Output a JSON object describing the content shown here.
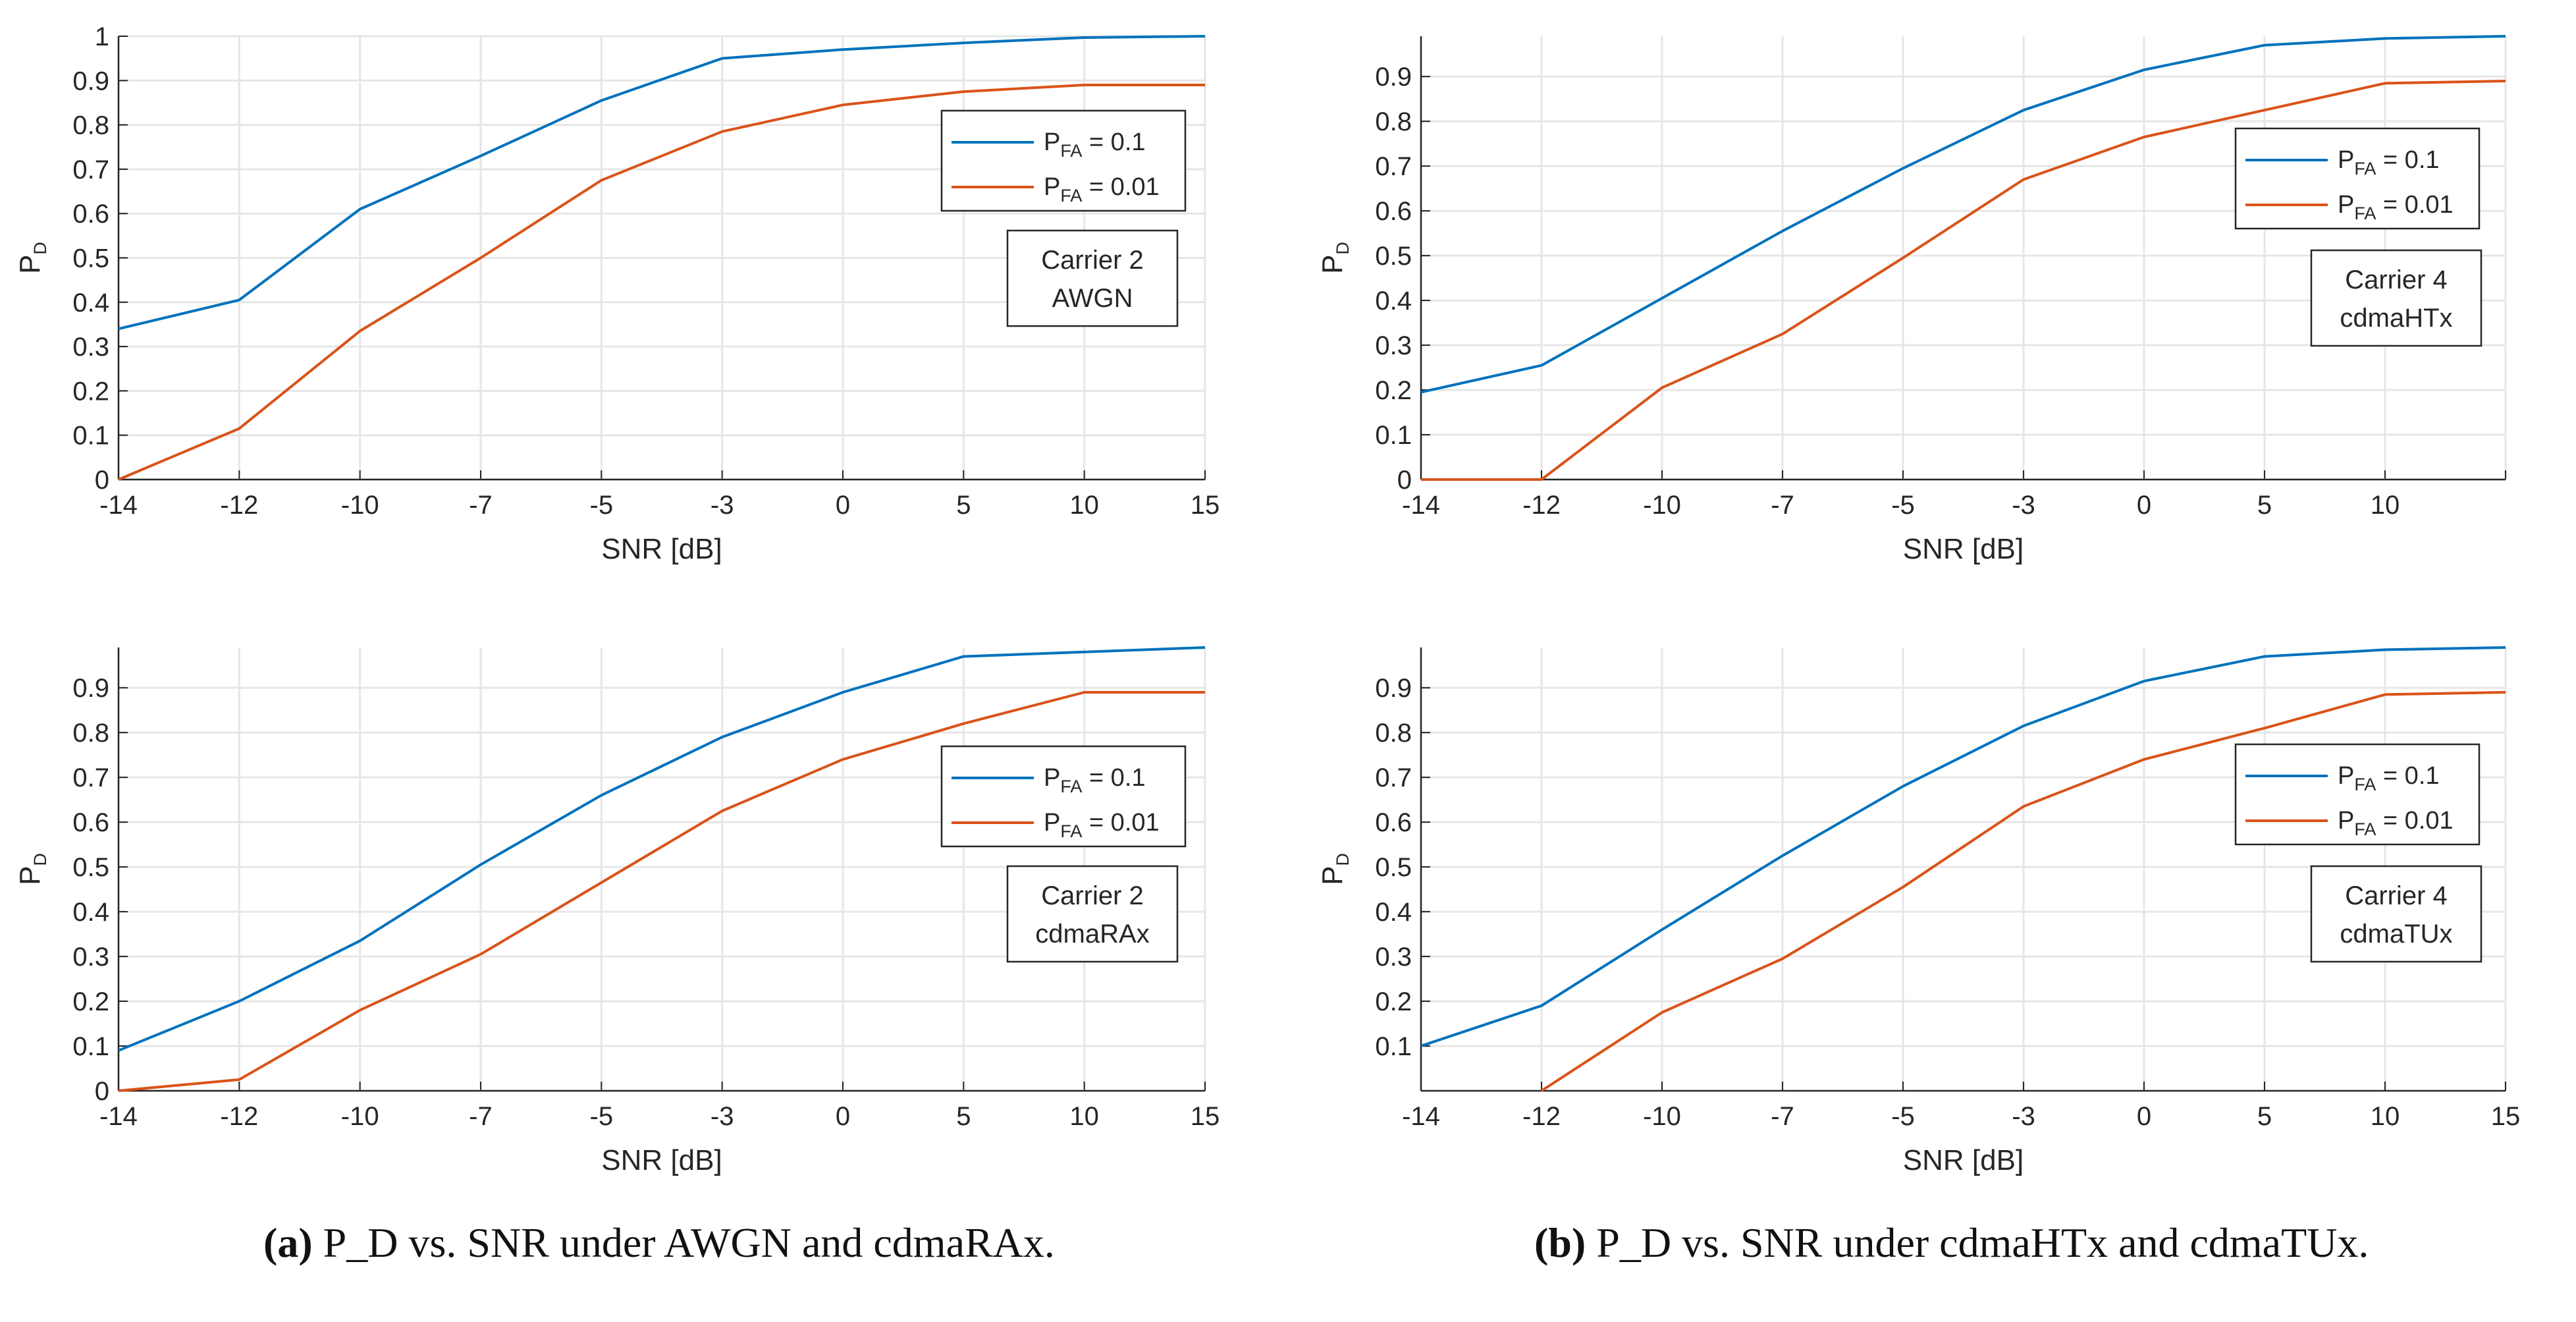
{
  "colors": {
    "series1": "#0072BD",
    "series2": "#D95319",
    "grid": "#e6e6e6",
    "axis": "#262626"
  },
  "captions": [
    {
      "id": "a",
      "label": "(a)",
      "text": "P_D vs. SNR under AWGN and cdmaRAx."
    },
    {
      "id": "b",
      "label": "(b)",
      "text": "P_D vs. SNR under cdmaHTx and cdmaTUx."
    }
  ],
  "chart_data": [
    {
      "type": "line",
      "xlabel": "SNR [dB]",
      "ylabel": "P_D",
      "categories": [
        "-14",
        "-12",
        "-10",
        "-7",
        "-5",
        "-3",
        "0",
        "5",
        "10",
        "15"
      ],
      "ylim": [
        0,
        1
      ],
      "yticks": [
        "0",
        "0.1",
        "0.2",
        "0.3",
        "0.4",
        "0.5",
        "0.6",
        "0.7",
        "0.8",
        "0.9",
        "1"
      ],
      "grid": true,
      "legend_position": "right",
      "annotation": [
        "Carrier 2",
        "AWGN"
      ],
      "series": [
        {
          "name": "P_FA = 0.1",
          "values": [
            0.34,
            0.405,
            0.61,
            0.73,
            0.855,
            0.95,
            0.97,
            0.985,
            0.997,
            1.0
          ]
        },
        {
          "name": "P_FA = 0.01",
          "values": [
            0.0,
            0.115,
            0.335,
            0.5,
            0.675,
            0.785,
            0.845,
            0.875,
            0.89,
            0.89
          ]
        }
      ]
    },
    {
      "type": "line",
      "xlabel": "SNR [dB]",
      "ylabel": "P_D",
      "categories": [
        "-14",
        "-12",
        "-10",
        "-7",
        "-5",
        "-3",
        "0",
        "5",
        "10",
        "15"
      ],
      "ylim": [
        0,
        0.99
      ],
      "yticks": [
        "0",
        "0.1",
        "0.2",
        "0.3",
        "0.4",
        "0.5",
        "0.6",
        "0.7",
        "0.8",
        "0.9"
      ],
      "grid": true,
      "legend_position": "right",
      "annotation": [
        "Carrier 2",
        "cdmaRAx"
      ],
      "series": [
        {
          "name": "P_FA = 0.1",
          "values": [
            0.09,
            0.2,
            0.335,
            0.505,
            0.66,
            0.79,
            0.89,
            0.97,
            0.98,
            0.99
          ]
        },
        {
          "name": "P_FA = 0.01",
          "values": [
            0.0,
            0.025,
            0.18,
            0.305,
            0.465,
            0.625,
            0.74,
            0.82,
            0.89,
            0.89
          ]
        }
      ]
    },
    {
      "type": "line",
      "xlabel": "SNR [dB]",
      "ylabel": "P_D",
      "categories": [
        "-14",
        "-12",
        "-10",
        "-7",
        "-5",
        "-3",
        "0",
        "5",
        "10",
        ""
      ],
      "ylim": [
        0,
        0.99
      ],
      "yticks": [
        "0",
        "0.1",
        "0.2",
        "0.3",
        "0.4",
        "0.5",
        "0.6",
        "0.7",
        "0.8",
        "0.9"
      ],
      "grid": true,
      "legend_position": "right",
      "annotation": [
        "Carrier 4",
        "cdmaHTx"
      ],
      "series": [
        {
          "name": "P_FA = 0.1",
          "values": [
            0.195,
            0.255,
            0.405,
            0.555,
            0.695,
            0.825,
            0.915,
            0.97,
            0.985,
            0.99
          ]
        },
        {
          "name": "P_FA = 0.01",
          "values": [
            0.0,
            0.0,
            0.205,
            0.325,
            0.495,
            0.67,
            0.765,
            0.825,
            0.885,
            0.89
          ]
        }
      ]
    },
    {
      "type": "line",
      "xlabel": "SNR [dB]",
      "ylabel": "P_D",
      "categories": [
        "-14",
        "-12",
        "-10",
        "-7",
        "-5",
        "-3",
        "0",
        "5",
        "10",
        "15"
      ],
      "ylim": [
        0,
        0.99
      ],
      "yticks": [
        "0.1",
        "0.2",
        "0.3",
        "0.4",
        "0.5",
        "0.6",
        "0.7",
        "0.8",
        "0.9"
      ],
      "grid": true,
      "legend_position": "right",
      "annotation": [
        "Carrier 4",
        "cdmaTUx"
      ],
      "series": [
        {
          "name": "P_FA = 0.1",
          "values": [
            0.1,
            0.19,
            0.36,
            0.525,
            0.68,
            0.815,
            0.915,
            0.97,
            0.985,
            0.99
          ]
        },
        {
          "name": "P_FA = 0.01",
          "values": [
            null,
            0.0,
            0.175,
            0.295,
            0.455,
            0.635,
            0.74,
            0.81,
            0.885,
            0.89
          ]
        }
      ]
    }
  ]
}
